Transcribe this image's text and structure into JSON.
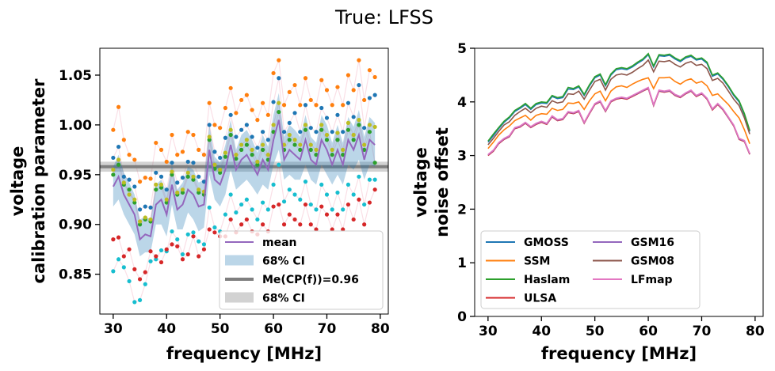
{
  "suptitle": "True: LFSS",
  "colors": {
    "mean": "#9467bd",
    "ci_band": "#1f77b4",
    "me_line": "#7f7f7f",
    "dot_palette": [
      "#1f77b4",
      "#ff7f0e",
      "#2ca02c",
      "#d62728",
      "#9467bd",
      "#8c564b",
      "#e377c2",
      "#7f7f7f",
      "#bcbd22",
      "#17becf"
    ]
  },
  "chart_data": [
    {
      "type": "line",
      "xlabel": "frequency [MHz]",
      "ylabel_lines": [
        "voltage",
        "calibration parameter"
      ],
      "xlim": [
        27.5,
        81.5
      ],
      "ylim": [
        0.81,
        1.077
      ],
      "xticks": [
        30,
        40,
        50,
        60,
        70,
        80
      ],
      "yticks": [
        0.85,
        0.9,
        0.95,
        1.0,
        1.05
      ],
      "ytick_labels": [
        "0.85",
        "0.90",
        "0.95",
        "1.00",
        "1.05"
      ],
      "x": [
        30,
        31,
        32,
        33,
        34,
        35,
        36,
        37,
        38,
        39,
        40,
        41,
        42,
        43,
        44,
        45,
        46,
        47,
        48,
        49,
        50,
        51,
        52,
        53,
        54,
        55,
        56,
        57,
        58,
        59,
        60,
        61,
        62,
        63,
        64,
        65,
        66,
        67,
        68,
        69,
        70,
        71,
        72,
        73,
        74,
        75,
        76,
        77,
        78,
        79
      ],
      "mean": [
        0.938,
        0.948,
        0.93,
        0.92,
        0.91,
        0.885,
        0.89,
        0.888,
        0.92,
        0.925,
        0.91,
        0.94,
        0.915,
        0.92,
        0.935,
        0.93,
        0.918,
        0.92,
        0.975,
        0.945,
        0.94,
        0.955,
        0.98,
        0.955,
        0.965,
        0.97,
        0.96,
        0.95,
        0.965,
        0.955,
        0.985,
        1.005,
        0.965,
        0.975,
        0.97,
        0.965,
        0.985,
        0.965,
        0.96,
        0.985,
        0.975,
        0.96,
        0.975,
        0.96,
        0.985,
        0.975,
        0.99,
        0.965,
        0.985,
        0.98
      ],
      "ci_band": {
        "label": "68% CI",
        "lower": [
          0.918,
          0.925,
          0.91,
          0.9,
          0.89,
          0.868,
          0.872,
          0.872,
          0.9,
          0.9,
          0.888,
          0.92,
          0.895,
          0.895,
          0.912,
          0.905,
          0.893,
          0.897,
          0.95,
          0.925,
          0.918,
          0.93,
          0.955,
          0.935,
          0.94,
          0.945,
          0.938,
          0.93,
          0.94,
          0.935,
          0.96,
          0.975,
          0.945,
          0.95,
          0.945,
          0.945,
          0.96,
          0.945,
          0.94,
          0.96,
          0.95,
          0.94,
          0.95,
          0.94,
          0.96,
          0.955,
          0.965,
          0.945,
          0.96,
          0.958
        ],
        "upper": [
          0.958,
          0.97,
          0.952,
          0.942,
          0.93,
          0.905,
          0.908,
          0.905,
          0.94,
          0.945,
          0.932,
          0.96,
          0.935,
          0.942,
          0.958,
          0.955,
          0.942,
          0.945,
          1.0,
          0.968,
          0.962,
          0.98,
          1.005,
          0.975,
          0.99,
          0.995,
          0.985,
          0.972,
          0.99,
          0.978,
          1.01,
          1.032,
          0.988,
          1.0,
          0.995,
          0.988,
          1.01,
          0.988,
          0.982,
          1.01,
          1.0,
          0.982,
          1.0,
          0.982,
          1.008,
          0.998,
          1.015,
          0.988,
          1.008,
          1.002
        ]
      },
      "me_line": {
        "label": "Me(CP(f))=0.96",
        "value": 0.958,
        "ci": [
          0.953,
          0.963
        ]
      },
      "dot_series": [
        {
          "color_index": 0,
          "values": [
            0.967,
            0.978,
            0.948,
            0.945,
            0.938,
            0.915,
            0.918,
            0.917,
            0.952,
            0.948,
            0.935,
            0.962,
            0.942,
            0.947,
            0.963,
            0.962,
            0.948,
            0.943,
            1.0,
            0.973,
            0.967,
            0.987,
            1.01,
            0.988,
            0.995,
            1.0,
            0.988,
            0.977,
            0.993,
            0.985,
            1.023,
            1.047,
            0.993,
            1.002,
            1.012,
            0.993,
            1.02,
            0.997,
            0.993,
            1.017,
            1.007,
            0.993,
            1.01,
            0.993,
            1.022,
            1.008,
            1.04,
            0.997,
            1.027,
            1.03
          ]
        },
        {
          "color_index": 1,
          "values": [
            0.995,
            1.018,
            0.985,
            0.97,
            0.965,
            0.943,
            0.947,
            0.946,
            0.982,
            0.975,
            0.963,
            0.99,
            0.97,
            0.973,
            0.993,
            0.99,
            0.975,
            0.97,
            1.022,
            1.0,
            0.997,
            1.017,
            1.037,
            1.012,
            1.025,
            1.03,
            1.015,
            1.005,
            1.022,
            1.01,
            1.052,
            1.065,
            1.02,
            1.033,
            1.04,
            1.02,
            1.047,
            1.025,
            1.02,
            1.045,
            1.035,
            1.02,
            1.038,
            1.02,
            1.05,
            1.035,
            1.065,
            1.025,
            1.055,
            1.048
          ]
        },
        {
          "color_index": 2,
          "values": [
            0.95,
            0.96,
            0.94,
            0.935,
            0.922,
            0.9,
            0.905,
            0.903,
            0.935,
            0.937,
            0.922,
            0.95,
            0.93,
            0.932,
            0.948,
            0.945,
            0.932,
            0.93,
            0.985,
            0.956,
            0.952,
            0.968,
            0.99,
            0.966,
            0.975,
            0.98,
            0.97,
            0.96,
            0.975,
            0.965,
            0.993,
            1.013,
            0.975,
            0.985,
            0.98,
            0.975,
            0.995,
            0.975,
            0.97,
            0.995,
            0.985,
            0.97,
            0.985,
            0.97,
            0.995,
            0.985,
            1.0,
            0.975,
            0.993,
            0.962
          ]
        },
        {
          "color_index": 8,
          "values": [
            0.955,
            0.965,
            0.942,
            0.93,
            0.925,
            0.903,
            0.907,
            0.905,
            0.94,
            0.94,
            0.925,
            0.953,
            0.932,
            0.935,
            0.952,
            0.948,
            0.935,
            0.933,
            0.988,
            0.96,
            0.955,
            0.972,
            0.995,
            0.97,
            0.98,
            0.985,
            0.975,
            0.963,
            0.98,
            0.97,
            1.0,
            1.022,
            0.98,
            0.99,
            0.985,
            0.98,
            1.0,
            0.98,
            0.975,
            1.0,
            0.99,
            0.975,
            0.992,
            0.975,
            1.002,
            0.99,
            1.005,
            0.98,
            1.0,
            0.998
          ]
        },
        {
          "color_index": 9,
          "values": [
            0.853,
            0.865,
            0.857,
            0.843,
            0.822,
            0.824,
            0.84,
            0.863,
            0.865,
            0.874,
            0.873,
            0.893,
            0.885,
            0.87,
            0.89,
            0.892,
            0.883,
            0.88,
            0.917,
            0.897,
            0.893,
            0.91,
            0.93,
            0.912,
            0.92,
            0.925,
            0.915,
            0.905,
            0.922,
            0.915,
            0.94,
            0.96,
            0.923,
            0.935,
            0.93,
            0.925,
            0.943,
            0.92,
            0.915,
            0.94,
            0.93,
            0.915,
            0.932,
            0.915,
            0.94,
            0.93,
            0.948,
            0.92,
            0.945,
            0.945
          ]
        },
        {
          "color_index": 3,
          "values": [
            0.885,
            0.887,
            0.868,
            0.875,
            0.855,
            0.845,
            0.852,
            0.873,
            0.868,
            0.862,
            0.875,
            0.88,
            0.878,
            0.865,
            0.87,
            0.888,
            0.868,
            0.875,
            0.895,
            0.892,
            0.888,
            0.888,
            0.905,
            0.892,
            0.9,
            0.905,
            0.893,
            0.89,
            0.9,
            0.893,
            0.918,
            0.92,
            0.9,
            0.91,
            0.905,
            0.9,
            0.92,
            0.9,
            0.895,
            0.918,
            0.91,
            0.895,
            0.91,
            0.895,
            0.92,
            0.905,
            0.925,
            0.9,
            0.922,
            0.935
          ]
        }
      ],
      "legend": {
        "placement": "lower right",
        "entries": [
          {
            "kind": "line",
            "label": "mean",
            "color": "#9467bd"
          },
          {
            "kind": "patch",
            "label": "68% CI",
            "color": "#1f77b4"
          },
          {
            "kind": "thickline",
            "label": "Me(CP(f))=0.96",
            "color": "#7f7f7f"
          },
          {
            "kind": "patch",
            "label": "68% CI",
            "color": "#7f7f7f"
          }
        ]
      }
    },
    {
      "type": "line",
      "xlabel": "frequency [MHz]",
      "ylabel_lines": [
        "voltage",
        "noise offset"
      ],
      "xlim": [
        27.5,
        81.5
      ],
      "ylim": [
        0,
        5
      ],
      "xticks": [
        30,
        40,
        50,
        60,
        70,
        80
      ],
      "yticks": [
        0,
        1,
        2,
        3,
        4,
        5
      ],
      "ytick_labels": [
        "0",
        "1",
        "2",
        "3",
        "4",
        "5"
      ],
      "x": [
        30,
        31,
        32,
        33,
        34,
        35,
        36,
        37,
        38,
        39,
        40,
        41,
        42,
        43,
        44,
        45,
        46,
        47,
        48,
        49,
        50,
        51,
        52,
        53,
        54,
        55,
        56,
        57,
        58,
        59,
        60,
        61,
        62,
        63,
        64,
        65,
        66,
        67,
        68,
        69,
        70,
        71,
        72,
        73,
        74,
        75,
        76,
        77,
        78,
        79
      ],
      "series": [
        {
          "name": "GMOSS",
          "color": "#1f77b4",
          "values": [
            3.25,
            3.37,
            3.5,
            3.62,
            3.7,
            3.82,
            3.88,
            3.95,
            3.86,
            3.95,
            3.98,
            3.97,
            4.1,
            4.06,
            4.08,
            4.24,
            4.23,
            4.28,
            4.12,
            4.3,
            4.45,
            4.5,
            4.3,
            4.5,
            4.6,
            4.62,
            4.6,
            4.65,
            4.72,
            4.78,
            4.88,
            4.65,
            4.86,
            4.85,
            4.87,
            4.8,
            4.75,
            4.82,
            4.85,
            4.78,
            4.8,
            4.72,
            4.48,
            4.52,
            4.42,
            4.28,
            4.12,
            4.0,
            3.76,
            3.45
          ]
        },
        {
          "name": "SSM",
          "color": "#ff7f0e",
          "values": [
            3.13,
            3.25,
            3.38,
            3.48,
            3.55,
            3.65,
            3.7,
            3.75,
            3.66,
            3.75,
            3.78,
            3.77,
            3.88,
            3.84,
            3.86,
            3.98,
            3.97,
            4.0,
            3.86,
            4.02,
            4.15,
            4.2,
            4.02,
            4.2,
            4.28,
            4.3,
            4.27,
            4.33,
            4.38,
            4.42,
            4.45,
            4.25,
            4.45,
            4.45,
            4.46,
            4.38,
            4.33,
            4.4,
            4.43,
            4.35,
            4.38,
            4.3,
            4.12,
            4.15,
            4.05,
            3.95,
            3.82,
            3.7,
            3.48,
            3.22
          ]
        },
        {
          "name": "Haslam",
          "color": "#2ca02c",
          "values": [
            3.27,
            3.4,
            3.52,
            3.64,
            3.72,
            3.84,
            3.9,
            3.97,
            3.88,
            3.97,
            4.0,
            3.99,
            4.12,
            4.08,
            4.1,
            4.27,
            4.25,
            4.3,
            4.14,
            4.32,
            4.47,
            4.52,
            4.32,
            4.52,
            4.62,
            4.64,
            4.62,
            4.67,
            4.74,
            4.8,
            4.9,
            4.67,
            4.88,
            4.87,
            4.89,
            4.82,
            4.77,
            4.84,
            4.87,
            4.8,
            4.82,
            4.74,
            4.5,
            4.54,
            4.44,
            4.3,
            4.14,
            4.02,
            3.78,
            3.47
          ]
        },
        {
          "name": "ULSA",
          "color": "#d62728",
          "values": [
            3.0,
            3.08,
            3.22,
            3.3,
            3.35,
            3.5,
            3.53,
            3.6,
            3.52,
            3.58,
            3.62,
            3.58,
            3.72,
            3.65,
            3.67,
            3.8,
            3.78,
            3.82,
            3.6,
            3.78,
            3.95,
            4.0,
            3.82,
            4.0,
            4.05,
            4.07,
            4.05,
            4.1,
            4.15,
            4.2,
            4.25,
            3.93,
            4.2,
            4.18,
            4.2,
            4.12,
            4.08,
            4.15,
            4.2,
            4.1,
            4.15,
            4.05,
            3.85,
            3.95,
            3.85,
            3.7,
            3.55,
            3.3,
            3.26,
            3.02
          ]
        },
        {
          "name": "GSM16",
          "color": "#9467bd",
          "values": [
            3.01,
            3.09,
            3.23,
            3.31,
            3.36,
            3.51,
            3.54,
            3.61,
            3.53,
            3.59,
            3.63,
            3.59,
            3.73,
            3.66,
            3.68,
            3.81,
            3.79,
            3.83,
            3.61,
            3.79,
            3.96,
            4.01,
            3.83,
            4.01,
            4.06,
            4.08,
            4.06,
            4.11,
            4.16,
            4.21,
            4.26,
            3.94,
            4.21,
            4.19,
            4.21,
            4.13,
            4.09,
            4.16,
            4.21,
            4.11,
            4.16,
            4.06,
            3.86,
            3.96,
            3.86,
            3.71,
            3.56,
            3.31,
            3.27,
            3.03
          ]
        },
        {
          "name": "GSM08",
          "color": "#8c564b",
          "values": [
            3.2,
            3.32,
            3.45,
            3.57,
            3.63,
            3.75,
            3.82,
            3.88,
            3.8,
            3.88,
            3.92,
            3.9,
            4.02,
            3.98,
            4.0,
            4.15,
            4.14,
            4.2,
            4.05,
            4.22,
            4.38,
            4.42,
            4.22,
            4.42,
            4.5,
            4.52,
            4.5,
            4.55,
            4.62,
            4.68,
            4.78,
            4.56,
            4.76,
            4.75,
            4.77,
            4.7,
            4.65,
            4.72,
            4.75,
            4.68,
            4.7,
            4.62,
            4.4,
            4.44,
            4.35,
            4.2,
            4.05,
            3.93,
            3.7,
            3.4
          ]
        },
        {
          "name": "LFmap",
          "color": "#e377c2",
          "values": [
            3.02,
            3.1,
            3.24,
            3.32,
            3.37,
            3.52,
            3.55,
            3.62,
            3.54,
            3.6,
            3.64,
            3.6,
            3.74,
            3.67,
            3.69,
            3.82,
            3.8,
            3.84,
            3.62,
            3.8,
            3.97,
            4.02,
            3.84,
            4.02,
            4.07,
            4.09,
            4.07,
            4.12,
            4.17,
            4.22,
            4.27,
            3.95,
            4.22,
            4.2,
            4.22,
            4.14,
            4.1,
            4.17,
            4.22,
            4.12,
            4.17,
            4.07,
            3.87,
            3.97,
            3.87,
            3.72,
            3.57,
            3.32,
            3.28,
            3.04
          ]
        }
      ],
      "legend": {
        "placement": "lower left",
        "columns": 2
      }
    }
  ]
}
